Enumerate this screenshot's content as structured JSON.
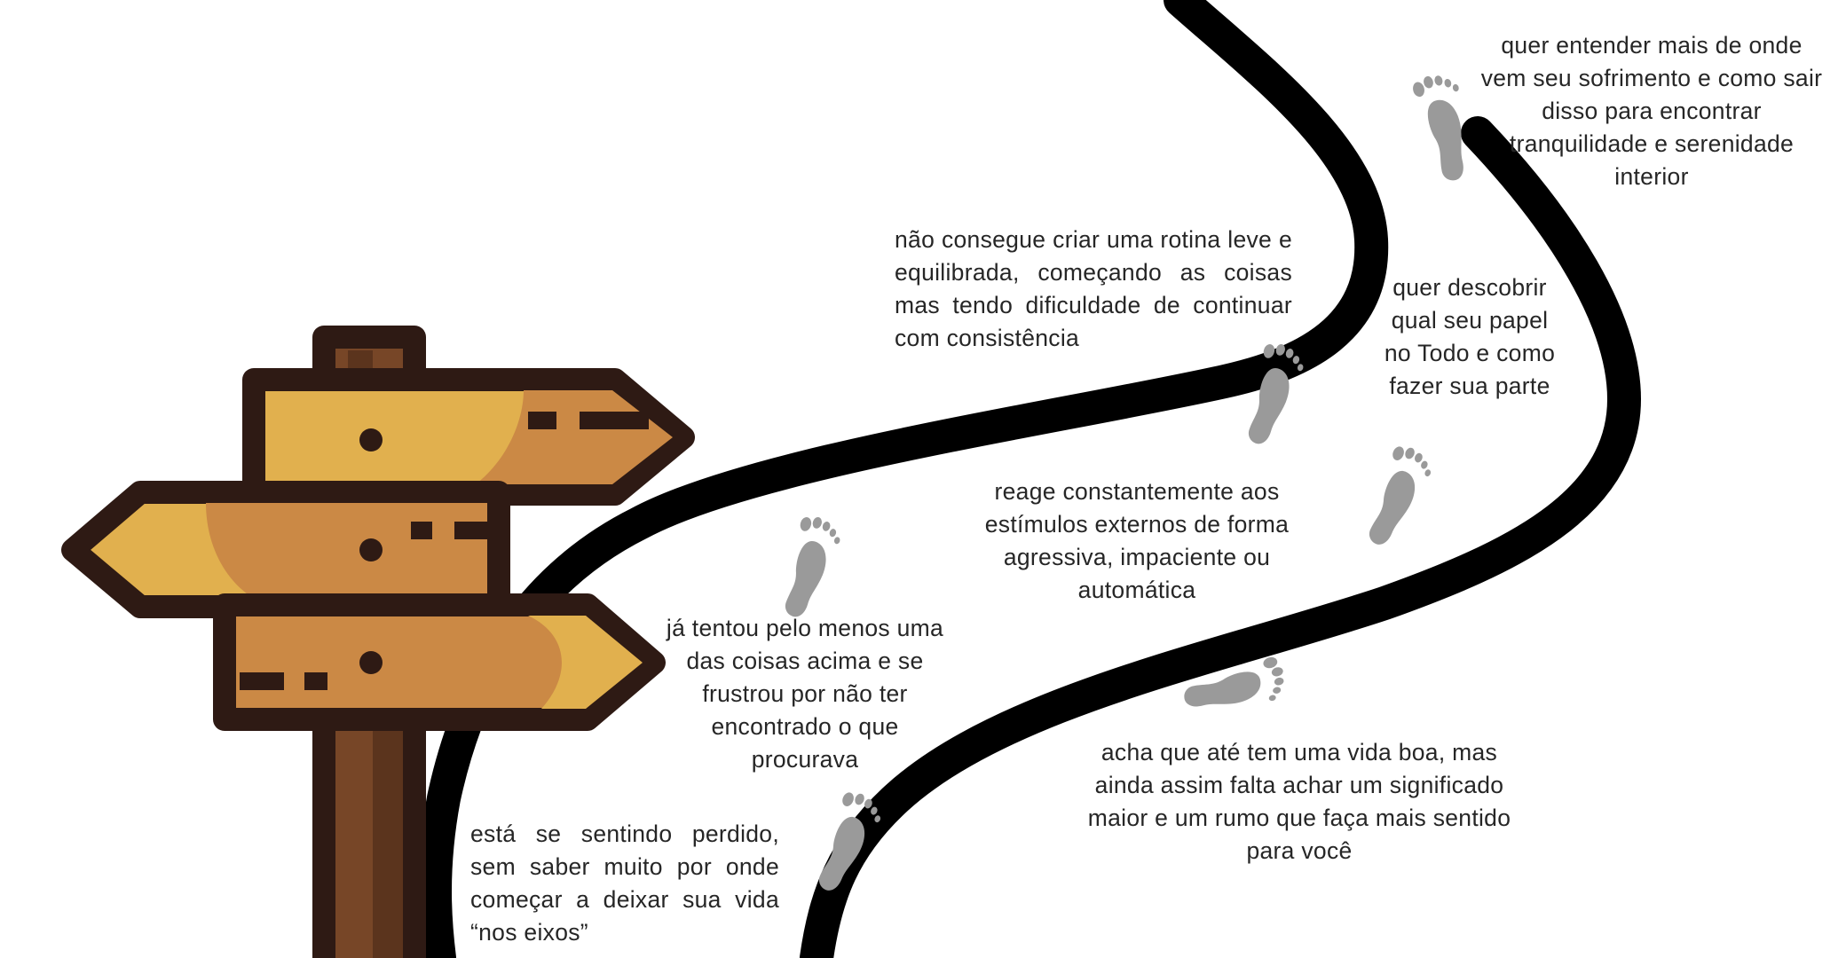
{
  "scene": {
    "colors": {
      "path": "#000000",
      "footprint": "#9a9a9a",
      "outline": "#2e1a14",
      "sign_light": "#e1b04e",
      "sign_dark": "#cb8945",
      "post_light": "#774627",
      "post_dark": "#5b341d",
      "text": "#262626"
    },
    "icons": [
      "signpost-icon",
      "winding-path",
      "footprint-icon"
    ]
  },
  "captions": [
    {
      "id": "cap-1",
      "text": "quer entender mais de onde vem seu sofrimento e como sair disso para encontrar tranquilidade e serenidade interior"
    },
    {
      "id": "cap-2",
      "text": "não consegue criar uma rotina leve e equilibrada, começando as coisas mas tendo dificuldade de continuar com consistência"
    },
    {
      "id": "cap-3",
      "text": "quer descobrir qual seu papel no Todo e como fazer sua parte"
    },
    {
      "id": "cap-4",
      "text": "reage constantemente aos estímulos externos de forma agressiva, impaciente ou automática"
    },
    {
      "id": "cap-5",
      "text": "já tentou pelo menos uma das coisas acima e se frustrou por não ter encontrado o que procurava"
    },
    {
      "id": "cap-6",
      "text": "acha que até tem uma vida boa, mas ainda assim falta achar um significado maior e um rumo que faça mais sentido para você"
    },
    {
      "id": "cap-7",
      "text": "está se sentindo perdido, sem saber muito por onde começar a deixar sua vida “nos eixos”"
    }
  ]
}
